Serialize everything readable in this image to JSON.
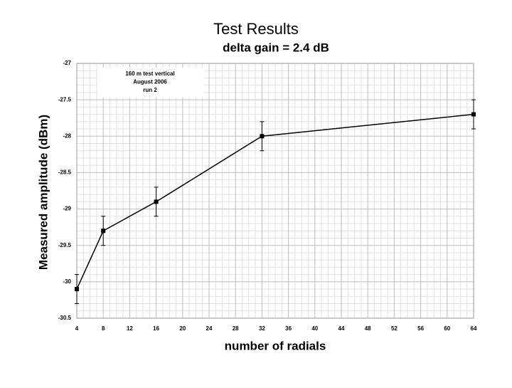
{
  "chart_data": {
    "type": "line",
    "title": "Test Results",
    "subtitle": "delta gain = 2.4 dB",
    "annotations": [
      "160 m test vertical",
      "August 2006",
      "run 2"
    ],
    "x_label": "number of radials",
    "y_label": "Measured amplitude (dBm)",
    "x": [
      4,
      8,
      16,
      32,
      64
    ],
    "series": [
      {
        "name": "run 2",
        "color": "#000000",
        "values": [
          -30.1,
          -29.3,
          -28.9,
          -28.0,
          -27.7
        ],
        "errors": [
          0.2,
          0.2,
          0.2,
          0.2,
          0.2
        ]
      }
    ],
    "xlim": [
      4,
      64
    ],
    "xticks": [
      4,
      8,
      12,
      16,
      20,
      24,
      28,
      32,
      36,
      40,
      44,
      48,
      52,
      56,
      60,
      64
    ],
    "ylim": [
      -30.5,
      -27
    ],
    "yticks": [
      -30.5,
      -30,
      -29.5,
      -29,
      -28.5,
      -28,
      -27.5,
      -27
    ],
    "grid": true
  }
}
